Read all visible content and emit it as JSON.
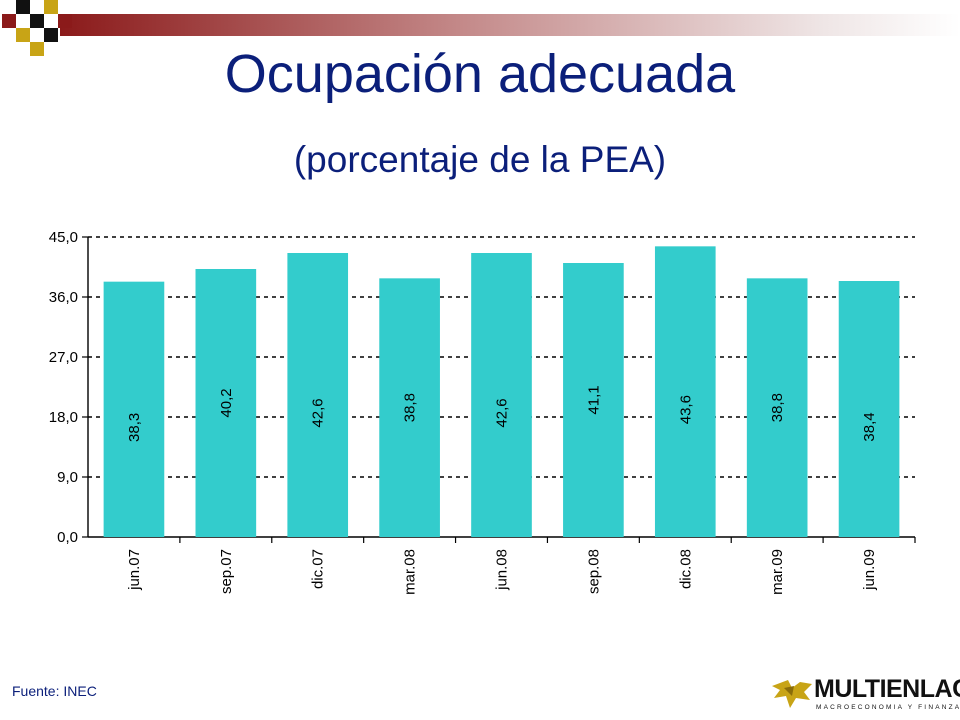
{
  "slide": {
    "title": "Ocupación adecuada",
    "subtitle": "(porcentaje de la PEA)",
    "source": "Fuente: INEC",
    "logo_name": "MULTIENLACE",
    "logo_tagline": "MACROECONOMIA Y FINANZAS",
    "logo_icon": "bird-emblem-icon"
  },
  "colors": {
    "title": "#0b1f7a",
    "bar": "#33cccc",
    "accent_red": "#8b1a1a",
    "accent_gold": "#c8a416"
  },
  "chart_data": {
    "type": "bar",
    "categories": [
      "jun.07",
      "sep.07",
      "dic.07",
      "mar.08",
      "jun.08",
      "sep.08",
      "dic.08",
      "mar.09",
      "jun.09"
    ],
    "values": [
      38.3,
      40.2,
      42.6,
      38.8,
      42.6,
      41.1,
      43.6,
      38.8,
      38.4
    ],
    "value_labels": [
      "38,3",
      "40,2",
      "42,6",
      "38,8",
      "42,6",
      "41,1",
      "43,6",
      "38,8",
      "38,4"
    ],
    "ylim": [
      0,
      45
    ],
    "yticks": [
      0,
      9,
      18,
      27,
      36,
      45
    ],
    "ytick_labels": [
      "0,0",
      "9,0",
      "18,0",
      "27,0",
      "36,0",
      "45,0"
    ],
    "grid": "dashed horizontal",
    "legend": "none"
  }
}
